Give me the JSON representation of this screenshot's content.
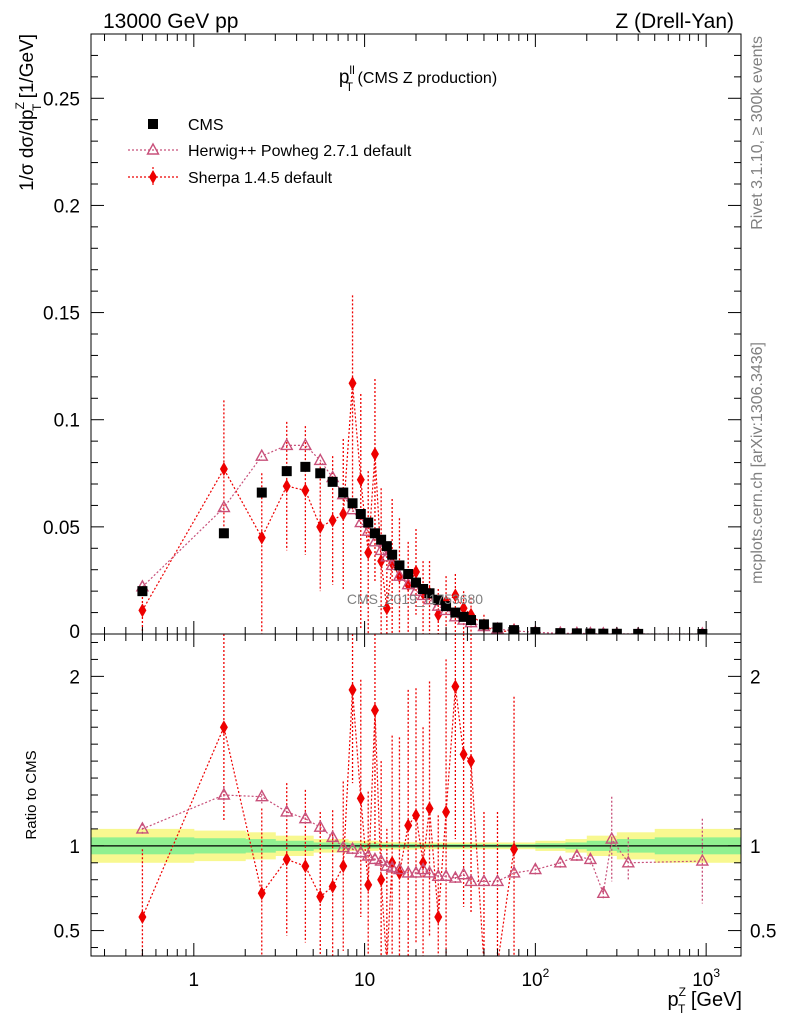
{
  "header": {
    "left_label": "13000 GeV pp",
    "right_label": "Z (Drell-Yan)",
    "plot_title_main": "p",
    "plot_title_sup": "ll",
    "plot_title_sub": "T",
    "plot_title_rest": " (CMS Z production)",
    "watermark": "CMS_2019_I1753680",
    "side_rivet": "Rivet 3.1.10, ≥ 300k events",
    "side_mcplots": "mcplots.cern.ch [arXiv:1306.3436]"
  },
  "chart_data": [
    {
      "panel": "main",
      "type": "scatter",
      "x_scale": "log",
      "xlim": [
        0.25,
        1600
      ],
      "ylim": [
        0,
        0.28
      ],
      "y_ticks": [
        0.05,
        0.1,
        0.15,
        0.2,
        0.25
      ],
      "y_tick_labels": [
        "0.05",
        "0.1",
        "0.15",
        "0.2",
        "0.25"
      ],
      "y_zero_label": "0",
      "ylabel": "1/σ dσ/dp",
      "ylabel_sup": "Z",
      "ylabel_sub": "T",
      "ylabel_unit": " [1/GeV]",
      "legend_position": "top-left",
      "series": [
        {
          "name": "CMS",
          "color": "#000000",
          "marker": "square",
          "x": [
            0.5,
            1.5,
            2.5,
            3.5,
            4.5,
            5.5,
            6.5,
            7.5,
            8.5,
            9.5,
            10.5,
            11.5,
            12.5,
            13.5,
            14.5,
            16,
            18,
            20,
            22,
            24,
            27,
            30,
            34,
            38,
            42,
            50,
            60,
            75,
            100,
            140,
            175,
            210,
            250,
            300,
            400,
            950
          ],
          "y": [
            0.02,
            0.047,
            0.066,
            0.076,
            0.078,
            0.075,
            0.071,
            0.066,
            0.061,
            0.056,
            0.052,
            0.047,
            0.044,
            0.041,
            0.037,
            0.032,
            0.028,
            0.024,
            0.021,
            0.019,
            0.016,
            0.013,
            0.01,
            0.008,
            0.0065,
            0.0045,
            0.003,
            0.0018,
            0.0009,
            0.0004,
            0.0003,
            0.0002,
            0.00015,
            0.0001,
            5e-05,
            1e-05
          ]
        },
        {
          "name": "Herwig++ Powheg 2.7.1 default",
          "color": "#c8507a",
          "marker": "open-triangle",
          "x": [
            0.5,
            1.5,
            2.5,
            3.5,
            4.5,
            5.5,
            6.5,
            7.5,
            8.5,
            9.5,
            10.5,
            11.5,
            12.5,
            13.5,
            14.5,
            16,
            18,
            20,
            22,
            24,
            27,
            30,
            34,
            38,
            42,
            50,
            60,
            75,
            100,
            140,
            175,
            210,
            250,
            300,
            400,
            950
          ],
          "y": [
            0.022,
            0.059,
            0.083,
            0.088,
            0.088,
            0.081,
            0.073,
            0.065,
            0.058,
            0.052,
            0.048,
            0.043,
            0.039,
            0.036,
            0.032,
            0.027,
            0.023,
            0.02,
            0.018,
            0.016,
            0.013,
            0.011,
            0.008,
            0.0065,
            0.0053,
            0.0035,
            0.0023,
            0.0015,
            0.0008,
            0.00035,
            0.00028,
            0.00018,
            0.0001,
            0.0001,
            4e-05,
            1e-05
          ]
        },
        {
          "name": "Sherpa 1.4.5 default",
          "color": "#ee0000",
          "marker": "diamond",
          "x": [
            0.5,
            1.5,
            2.5,
            3.5,
            4.5,
            5.5,
            6.5,
            7.5,
            8.5,
            9.5,
            10.5,
            11.5,
            12.5,
            13.5,
            14.5,
            16,
            18,
            20,
            22,
            24,
            27,
            30,
            34,
            38,
            42,
            50,
            60,
            75
          ],
          "y": [
            0.011,
            0.077,
            0.045,
            0.069,
            0.067,
            0.05,
            0.053,
            0.056,
            0.117,
            0.072,
            0.038,
            0.084,
            0.034,
            0.012,
            0.033,
            0.027,
            0.023,
            0.029,
            0.019,
            0.019,
            0.009,
            0.015,
            0.018,
            0.012,
            0.009,
            0.004,
            0.0008,
            0.0018
          ],
          "err_lo": [
            0.01,
            0.032,
            0.045,
            0.03,
            0.03,
            0.03,
            0.03,
            0.035,
            0.06,
            0.07,
            0.038,
            0.06,
            0.034,
            0.012,
            0.033,
            0.027,
            0.023,
            0.02,
            0.019,
            0.019,
            0.009,
            0.015,
            0.018,
            0.012,
            0.009,
            0.004,
            0.0008,
            0.0018
          ],
          "err_hi": [
            0.01,
            0.032,
            0.03,
            0.03,
            0.03,
            0.03,
            0.03,
            0.035,
            0.041,
            0.04,
            0.038,
            0.035,
            0.034,
            0.03,
            0.03,
            0.027,
            0.02,
            0.02,
            0.015,
            0.015,
            0.012,
            0.012,
            0.01,
            0.008,
            0.008,
            0.005,
            0.003,
            0.003
          ]
        }
      ]
    },
    {
      "panel": "ratio",
      "type": "scatter",
      "x_scale": "log",
      "xlim": [
        0.25,
        1600
      ],
      "ylim": [
        0.35,
        2.25
      ],
      "y_ticks": [
        0.5,
        1,
        2
      ],
      "y_tick_labels": [
        "0.5",
        "1",
        "2"
      ],
      "ylabel": "Ratio to CMS",
      "xlabel": "p",
      "xlabel_sup": "Z",
      "xlabel_sub": "T",
      "xlabel_unit": " [GeV]",
      "x_ticks": [
        1,
        10,
        100,
        1000
      ],
      "x_tick_labels": [
        {
          "base": "1",
          "exp": ""
        },
        {
          "base": "10",
          "exp": ""
        },
        {
          "base": "10",
          "exp": "2"
        },
        {
          "base": "10",
          "exp": "3"
        }
      ],
      "bands": {
        "inner_color": "#90f090",
        "outer_color": "#f8f890",
        "x_edges": [
          0.25,
          1,
          2,
          3,
          5,
          8,
          12,
          20,
          40,
          100,
          150,
          200,
          300,
          500,
          1600
        ],
        "inner_half": [
          0.05,
          0.045,
          0.04,
          0.03,
          0.02,
          0.015,
          0.012,
          0.01,
          0.01,
          0.015,
          0.02,
          0.03,
          0.04,
          0.05
        ],
        "outer_half": [
          0.1,
          0.09,
          0.08,
          0.06,
          0.04,
          0.03,
          0.022,
          0.02,
          0.02,
          0.03,
          0.04,
          0.06,
          0.08,
          0.1
        ]
      },
      "series": [
        {
          "name": "Herwig++ Powheg 2.7.1 default",
          "color": "#c8507a",
          "marker": "open-triangle",
          "x": [
            0.5,
            1.5,
            2.5,
            3.5,
            4.5,
            5.5,
            6.5,
            7.5,
            8.5,
            9.5,
            10.5,
            11.5,
            12.5,
            13.5,
            14.5,
            16,
            18,
            20,
            22,
            24,
            27,
            30,
            34,
            38,
            42,
            50,
            60,
            75,
            100,
            140,
            175,
            210,
            250,
            280,
            350,
            950
          ],
          "y": [
            1.1,
            1.3,
            1.29,
            1.2,
            1.16,
            1.11,
            1.05,
            0.99,
            0.98,
            0.96,
            0.94,
            0.92,
            0.91,
            0.88,
            0.87,
            0.86,
            0.84,
            0.84,
            0.86,
            0.84,
            0.82,
            0.82,
            0.81,
            0.83,
            0.79,
            0.79,
            0.79,
            0.84,
            0.86,
            0.9,
            0.94,
            0.92,
            0.72,
            1.04,
            0.9,
            0.91
          ],
          "err_lo": [
            0.03,
            0.05,
            0.04,
            0.03,
            0.03,
            0.03,
            0.03,
            0.03,
            0.03,
            0.03,
            0.03,
            0.03,
            0.03,
            0.03,
            0.03,
            0.03,
            0.03,
            0.03,
            0.03,
            0.03,
            0.03,
            0.03,
            0.03,
            0.03,
            0.03,
            0.03,
            0.03,
            0.03,
            0.03,
            0.03,
            0.03,
            0.03,
            0.03,
            0.25,
            0.1,
            0.25
          ],
          "err_hi": [
            0.03,
            0.05,
            0.04,
            0.03,
            0.03,
            0.03,
            0.03,
            0.03,
            0.03,
            0.03,
            0.03,
            0.03,
            0.03,
            0.03,
            0.03,
            0.03,
            0.03,
            0.03,
            0.03,
            0.03,
            0.03,
            0.03,
            0.03,
            0.03,
            0.03,
            0.03,
            0.03,
            0.03,
            0.03,
            0.03,
            0.03,
            0.03,
            0.03,
            0.25,
            0.15,
            0.25
          ]
        },
        {
          "name": "Sherpa 1.4.5 default",
          "color": "#ee0000",
          "marker": "diamond",
          "x": [
            0.5,
            1.5,
            2.5,
            3.5,
            4.5,
            5.5,
            6.5,
            7.5,
            8.5,
            9.5,
            10.5,
            11.5,
            12.5,
            13.5,
            14.5,
            16,
            18,
            20,
            22,
            24,
            27,
            30,
            34,
            38,
            42,
            50,
            60,
            75
          ],
          "y": [
            0.58,
            1.7,
            0.72,
            0.92,
            0.88,
            0.7,
            0.76,
            0.88,
            1.92,
            1.28,
            0.77,
            1.8,
            0.8,
            0.3,
            0.9,
            0.84,
            1.12,
            1.18,
            0.9,
            1.22,
            0.58,
            1.2,
            1.94,
            1.54,
            1.5,
            0.3,
            0.3,
            0.98
          ],
          "err_lo": [
            0.45,
            0.55,
            0.55,
            0.45,
            0.45,
            0.5,
            0.45,
            0.5,
            0.55,
            0.7,
            0.55,
            0.8,
            0.7,
            0.3,
            0.75,
            0.8,
            0.8,
            0.75,
            0.8,
            0.75,
            0.58,
            0.9,
            0.9,
            0.9,
            0.9,
            0.3,
            0.3,
            0.98
          ],
          "err_hi": [
            0.4,
            0.55,
            0.5,
            0.45,
            0.45,
            0.5,
            0.45,
            0.5,
            0.6,
            0.7,
            0.55,
            0.6,
            0.7,
            0.8,
            0.75,
            0.8,
            0.8,
            0.75,
            0.8,
            0.75,
            0.6,
            0.9,
            0.9,
            0.9,
            0.9,
            0.9,
            0.9,
            0.9
          ]
        }
      ]
    }
  ]
}
